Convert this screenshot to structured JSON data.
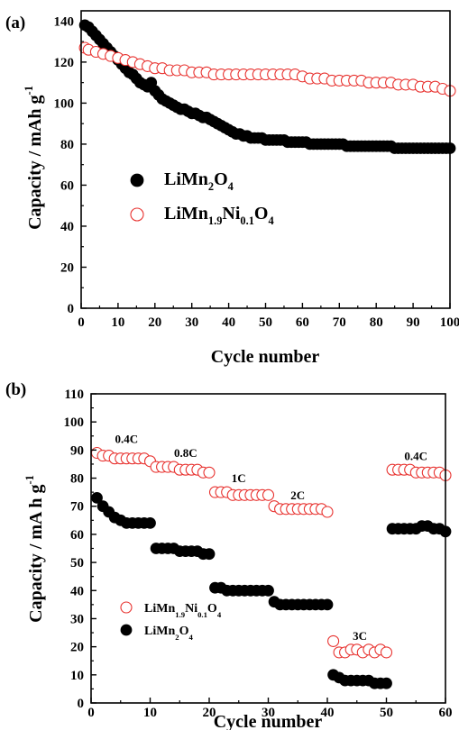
{
  "colors": {
    "black": "#000000",
    "red": "#e8322f",
    "frame": "#000000"
  },
  "chart_data": [
    {
      "type": "scatter",
      "panel": "(a)",
      "xlabel": "Cycle number",
      "ylabel": {
        "main": "Capacity / mAh g",
        "sup": "-1"
      },
      "xlim": [
        0,
        100
      ],
      "ylim": [
        0,
        145
      ],
      "xticks": [
        "0",
        "10",
        "20",
        "30",
        "40",
        "50",
        "60",
        "70",
        "80",
        "90",
        "100"
      ],
      "yticks": [
        "0",
        "20",
        "40",
        "60",
        "80",
        "100",
        "120",
        "140"
      ],
      "legend": [
        {
          "marker": "filled",
          "parts": [
            [
              "LiMn",
              ""
            ],
            [
              "2",
              "sub"
            ],
            [
              "O",
              ""
            ],
            [
              "4",
              "sub"
            ]
          ]
        },
        {
          "marker": "open",
          "parts": [
            [
              "LiMn",
              ""
            ],
            [
              "1.9",
              "sub"
            ],
            [
              "Ni",
              ""
            ],
            [
              "0.1",
              "sub"
            ],
            [
              "O",
              ""
            ],
            [
              "4",
              "sub"
            ]
          ]
        }
      ],
      "series": [
        {
          "name": "LiMn2O4",
          "marker": "filled",
          "x": [
            1,
            2,
            3,
            4,
            5,
            6,
            7,
            8,
            9,
            10,
            11,
            12,
            13,
            14,
            15,
            16,
            17,
            18,
            19,
            20,
            21,
            22,
            23,
            24,
            25,
            26,
            27,
            28,
            29,
            30,
            31,
            32,
            33,
            34,
            35,
            36,
            37,
            38,
            39,
            40,
            41,
            42,
            43,
            44,
            45,
            46,
            47,
            48,
            49,
            50,
            51,
            52,
            53,
            54,
            55,
            56,
            57,
            58,
            59,
            60,
            61,
            62,
            63,
            64,
            65,
            66,
            67,
            68,
            69,
            70,
            71,
            72,
            73,
            74,
            75,
            76,
            77,
            78,
            79,
            80,
            81,
            82,
            83,
            84,
            85,
            86,
            87,
            88,
            89,
            90,
            91,
            92,
            93,
            94,
            95,
            96,
            97,
            98,
            99,
            100
          ],
          "y": [
            138,
            137,
            135,
            133,
            131,
            129,
            127,
            125,
            123,
            121,
            119,
            117,
            115,
            114,
            112,
            110,
            109,
            108,
            110,
            106,
            104,
            102,
            101,
            100,
            99,
            98,
            97,
            97,
            96,
            95,
            95,
            94,
            93,
            93,
            92,
            91,
            90,
            89,
            88,
            87,
            86,
            85,
            85,
            84,
            84,
            83,
            83,
            83,
            83,
            82,
            82,
            82,
            82,
            82,
            82,
            81,
            81,
            81,
            81,
            81,
            81,
            80,
            80,
            80,
            80,
            80,
            80,
            80,
            80,
            80,
            80,
            79,
            79,
            79,
            79,
            79,
            79,
            79,
            79,
            79,
            79,
            79,
            79,
            79,
            78,
            78,
            78,
            78,
            78,
            78,
            78,
            78,
            78,
            78,
            78,
            78,
            78,
            78,
            78,
            78
          ]
        },
        {
          "name": "LiMn1.9Ni0.1O4",
          "marker": "open",
          "x": [
            1,
            2,
            4,
            6,
            8,
            10,
            12,
            14,
            16,
            18,
            20,
            22,
            24,
            26,
            28,
            30,
            32,
            34,
            36,
            38,
            40,
            42,
            44,
            46,
            48,
            50,
            52,
            54,
            56,
            58,
            60,
            62,
            64,
            66,
            68,
            70,
            72,
            74,
            76,
            78,
            80,
            82,
            84,
            86,
            88,
            90,
            92,
            94,
            96,
            98,
            100
          ],
          "y": [
            127,
            126,
            125,
            124,
            123,
            122,
            121,
            120,
            119,
            118,
            117,
            117,
            116,
            116,
            116,
            115,
            115,
            115,
            114,
            114,
            114,
            114,
            114,
            114,
            114,
            114,
            114,
            114,
            114,
            114,
            113,
            112,
            112,
            112,
            111,
            111,
            111,
            111,
            111,
            110,
            110,
            110,
            110,
            109,
            109,
            109,
            108,
            108,
            108,
            107,
            106
          ]
        }
      ]
    },
    {
      "type": "scatter",
      "panel": "(b)",
      "xlabel": "Cycle number",
      "ylabel": {
        "main": "Capacity / mA h g",
        "sup": "-1"
      },
      "xlim": [
        0,
        60
      ],
      "ylim": [
        0,
        110
      ],
      "xticks": [
        "0",
        "10",
        "20",
        "30",
        "40",
        "50",
        "60"
      ],
      "yticks": [
        "0",
        "10",
        "20",
        "30",
        "40",
        "50",
        "60",
        "70",
        "80",
        "90",
        "100",
        "110"
      ],
      "legend": [
        {
          "marker": "open",
          "parts": [
            [
              "LiMn",
              ""
            ],
            [
              "1.9",
              "sub"
            ],
            [
              "Ni",
              ""
            ],
            [
              "0.1",
              "sub"
            ],
            [
              "O",
              ""
            ],
            [
              "4",
              "sub"
            ]
          ]
        },
        {
          "marker": "filled",
          "parts": [
            [
              "LiMn",
              ""
            ],
            [
              "2",
              "sub"
            ],
            [
              "O",
              ""
            ],
            [
              "4",
              "sub"
            ]
          ]
        }
      ],
      "annotations": [
        {
          "text": "0.4C",
          "x": 6,
          "y": 92.5
        },
        {
          "text": "0.8C",
          "x": 16,
          "y": 87.5
        },
        {
          "text": "1C",
          "x": 25,
          "y": 78.5
        },
        {
          "text": "2C",
          "x": 35,
          "y": 72.5
        },
        {
          "text": "3C",
          "x": 45.5,
          "y": 22.5
        },
        {
          "text": "0.4C",
          "x": 55,
          "y": 86.5
        }
      ],
      "series": [
        {
          "name": "LiMn1.9Ni0.1O4",
          "marker": "open",
          "x": [
            1,
            2,
            3,
            4,
            5,
            6,
            7,
            8,
            9,
            10,
            11,
            12,
            13,
            14,
            15,
            16,
            17,
            18,
            19,
            20,
            21,
            22,
            23,
            24,
            25,
            26,
            27,
            28,
            29,
            30,
            31,
            32,
            33,
            34,
            35,
            36,
            37,
            38,
            39,
            40,
            41,
            42,
            43,
            44,
            45,
            46,
            47,
            48,
            49,
            50,
            51,
            52,
            53,
            54,
            55,
            56,
            57,
            58,
            59,
            60
          ],
          "y": [
            89,
            88,
            88,
            87,
            87,
            87,
            87,
            87,
            87,
            86,
            84,
            84,
            84,
            84,
            83,
            83,
            83,
            83,
            82,
            82,
            75,
            75,
            75,
            74,
            74,
            74,
            74,
            74,
            74,
            74,
            70,
            69,
            69,
            69,
            69,
            69,
            69,
            69,
            69,
            68,
            22,
            18,
            18,
            19,
            19,
            18,
            19,
            18,
            19,
            18,
            83,
            83,
            83,
            83,
            82,
            82,
            82,
            82,
            82,
            81
          ]
        },
        {
          "name": "LiMn2O4",
          "marker": "filled",
          "x": [
            1,
            2,
            3,
            4,
            5,
            6,
            7,
            8,
            9,
            10,
            11,
            12,
            13,
            14,
            15,
            16,
            17,
            18,
            19,
            20,
            21,
            22,
            23,
            24,
            25,
            26,
            27,
            28,
            29,
            30,
            31,
            32,
            33,
            34,
            35,
            36,
            37,
            38,
            39,
            40,
            41,
            42,
            43,
            44,
            45,
            46,
            47,
            48,
            49,
            50,
            51,
            52,
            53,
            54,
            55,
            56,
            57,
            58,
            59,
            60
          ],
          "y": [
            73,
            70,
            68,
            66,
            65,
            64,
            64,
            64,
            64,
            64,
            55,
            55,
            55,
            55,
            54,
            54,
            54,
            54,
            53,
            53,
            41,
            41,
            40,
            40,
            40,
            40,
            40,
            40,
            40,
            40,
            36,
            35,
            35,
            35,
            35,
            35,
            35,
            35,
            35,
            35,
            10,
            9,
            8,
            8,
            8,
            8,
            8,
            7,
            7,
            7,
            62,
            62,
            62,
            62,
            62,
            63,
            63,
            62,
            62,
            61
          ]
        }
      ]
    }
  ]
}
